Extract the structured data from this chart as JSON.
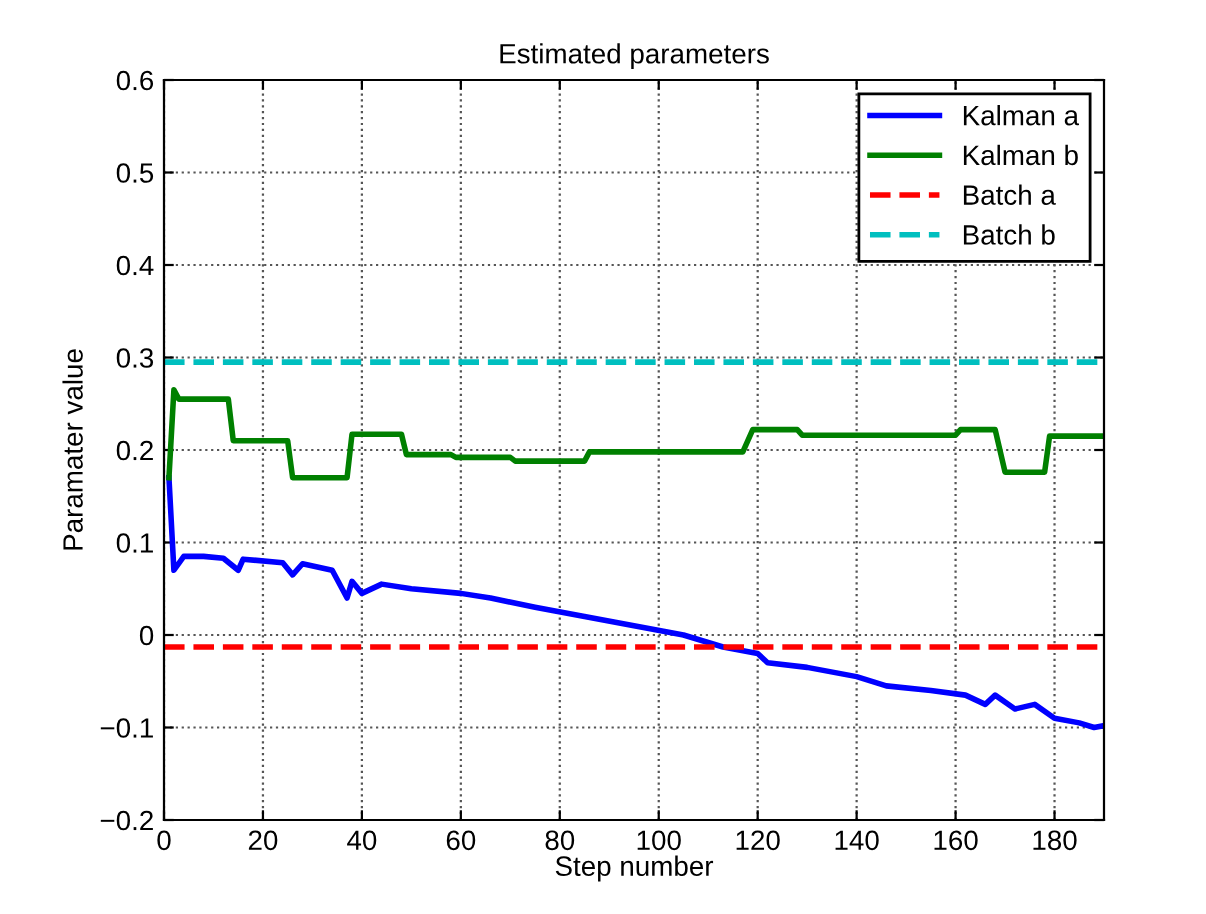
{
  "chart_data": {
    "type": "line",
    "title": "Estimated parameters",
    "xlabel": "Step number",
    "ylabel": "Paramater value",
    "xlim": [
      0,
      190
    ],
    "xticks": [
      0,
      20,
      40,
      60,
      80,
      100,
      120,
      140,
      160,
      180
    ],
    "ylim": [
      -0.2,
      0.6
    ],
    "yticks": [
      {
        "value": -0.2,
        "label": "−0.2"
      },
      {
        "value": -0.1,
        "label": "−0.1"
      },
      0,
      0.1,
      0.2,
      0.3,
      0.4,
      0.5,
      0.6
    ],
    "grid": true,
    "legend": "top right",
    "marker": "none",
    "series": [
      {
        "name": "Kalman a",
        "color": "#0000ff",
        "line_style": "solid",
        "x": [
          1,
          2,
          4,
          8,
          12,
          15,
          16,
          24,
          26,
          28,
          34,
          37,
          38,
          40,
          44,
          50,
          60,
          66,
          75,
          85,
          95,
          105,
          113,
          120,
          122,
          130,
          140,
          146,
          155,
          162,
          166,
          168,
          172,
          176,
          180,
          185,
          188,
          190
        ],
        "values": [
          0.17,
          0.07,
          0.085,
          0.085,
          0.083,
          0.07,
          0.082,
          0.078,
          0.065,
          0.077,
          0.07,
          0.04,
          0.058,
          0.045,
          0.055,
          0.05,
          0.045,
          0.04,
          0.03,
          0.02,
          0.01,
          0.0,
          -0.013,
          -0.02,
          -0.03,
          -0.035,
          -0.045,
          -0.055,
          -0.06,
          -0.065,
          -0.075,
          -0.065,
          -0.08,
          -0.075,
          -0.09,
          -0.095,
          -0.1,
          -0.098
        ]
      },
      {
        "name": "Kalman b",
        "color": "#008000",
        "line_style": "solid",
        "x": [
          1,
          2,
          3,
          13,
          14,
          25,
          26,
          37,
          38,
          48,
          49,
          58,
          59,
          70,
          71,
          85,
          86,
          117,
          119,
          128,
          129,
          160,
          161,
          168,
          170,
          178,
          179,
          190
        ],
        "values": [
          0.17,
          0.265,
          0.255,
          0.255,
          0.21,
          0.21,
          0.17,
          0.17,
          0.217,
          0.217,
          0.195,
          0.195,
          0.192,
          0.192,
          0.188,
          0.188,
          0.198,
          0.198,
          0.222,
          0.222,
          0.216,
          0.216,
          0.222,
          0.222,
          0.176,
          0.176,
          0.215,
          0.215
        ]
      },
      {
        "name": "Batch a",
        "color": "#ff0000",
        "line_style": "dashed",
        "x": [
          0,
          190
        ],
        "values": [
          -0.013,
          -0.013
        ]
      },
      {
        "name": "Batch b",
        "color": "#00bfbf",
        "line_style": "dashed",
        "x": [
          0,
          190
        ],
        "values": [
          0.295,
          0.295
        ]
      }
    ]
  }
}
